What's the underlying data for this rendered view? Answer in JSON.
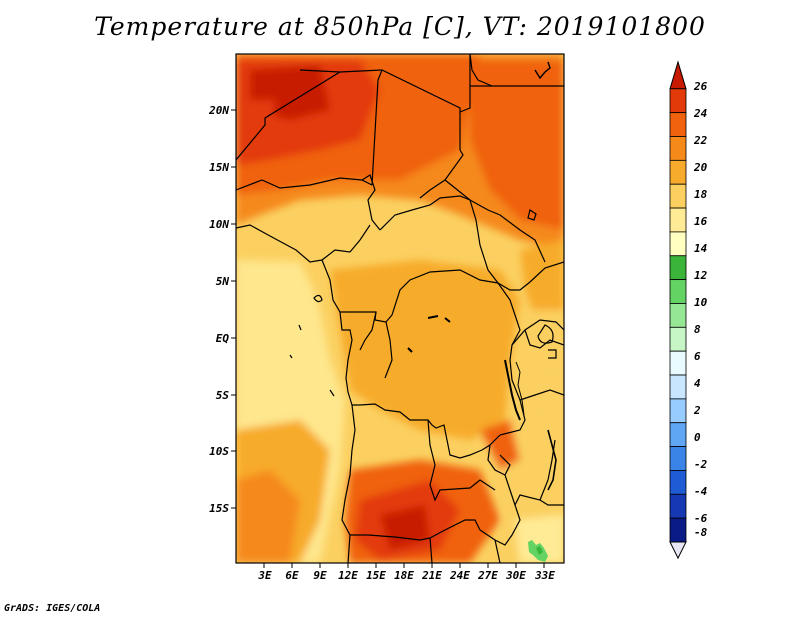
{
  "map": {
    "title": "Temperature at 850hPa [C], VT: 2019101800",
    "credit": "GrADS: IGES/COLA",
    "lat_labels": [
      "20N",
      "15N",
      "10N",
      "5N",
      "EQ",
      "5S",
      "10S",
      "15S"
    ],
    "lon_labels": [
      "3E",
      "6E",
      "9E",
      "12E",
      "15E",
      "18E",
      "21E",
      "24E",
      "27E",
      "30E",
      "33E"
    ],
    "colorbar": {
      "labels": [
        "26",
        "24",
        "22",
        "20",
        "18",
        "16",
        "14",
        "12",
        "10",
        "8",
        "6",
        "4",
        "2",
        "0",
        "-2",
        "-4",
        "-6",
        "-8"
      ],
      "colors": [
        "#c81a00",
        "#e33a0a",
        "#f0620e",
        "#f5891a",
        "#f7ab2c",
        "#fbd061",
        "#ffeb95",
        "#ffffc0",
        "#3ab53a",
        "#63d363",
        "#95e695",
        "#c6f5c6",
        "#e9fbff",
        "#c9e6ff",
        "#96ccff",
        "#5fa6f4",
        "#3a84e7",
        "#1e5bd4",
        "#1738b3",
        "#0a1a86",
        "#061272"
      ]
    },
    "accents": {
      "green_patch": "#3ab53a",
      "ocean_base": "#fde27c"
    }
  }
}
